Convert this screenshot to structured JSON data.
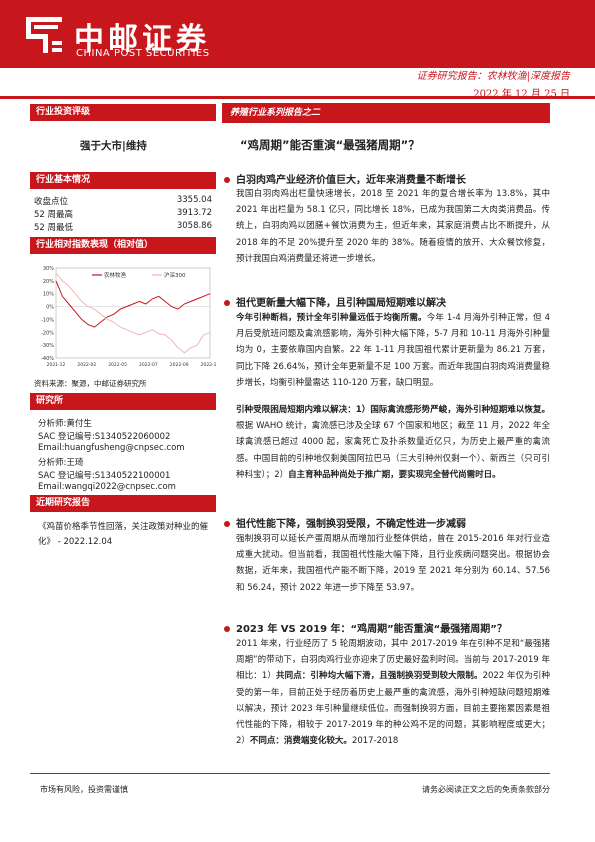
{
  "header": {
    "logo_cn": "中邮证券",
    "logo_en": "CHINA POST SECURITIES",
    "report_type": "证券研究报告：农林牧渔|深度报告",
    "date": "2022 年 12 月 25 日"
  },
  "sidebar": {
    "rating_section": "行业投资评级",
    "rating": "强于大市|维持",
    "basic_section": "行业基本情况",
    "basic_rows": [
      {
        "label": "收盘点位",
        "value": "3355.04"
      },
      {
        "label": "52 周最高",
        "value": "3913.72"
      },
      {
        "label": "52 周最低",
        "value": "3058.86"
      }
    ],
    "perf_section": "行业相对指数表现（相对值）",
    "source": "资料来源：聚源，中邮证券研究所",
    "analyst_section": "研究所",
    "analysts": [
      "分析师:黄付生",
      "SAC 登记编号:S1340522060002",
      "Email:huangfusheng@cnpsec.com",
      "分析师:王琦",
      "SAC 登记编号:S1340522100001",
      "Email:wangqi2022@cnpsec.com"
    ],
    "recent_section": "近期研究报告",
    "recent_text": "《鸡苗价格季节性回落，关注政策对种业的催化》 - 2022.12.04"
  },
  "chart_data": {
    "type": "line",
    "legend_position": "top",
    "series": [
      {
        "name": "农林牧渔",
        "color": "#c8161d",
        "values": [
          20,
          8,
          2,
          -4,
          -10,
          -14,
          -16,
          -12,
          -8,
          -6,
          -2,
          0,
          2,
          4,
          2,
          6,
          8,
          4,
          0,
          -2,
          2,
          4,
          6,
          8,
          10
        ]
      },
      {
        "name": "沪深300",
        "color": "#f4b6b6",
        "values": [
          26,
          20,
          16,
          10,
          4,
          0,
          -2,
          -6,
          -10,
          -12,
          -16,
          -18,
          -20,
          -22,
          -20,
          -18,
          -21,
          -22,
          -26,
          -32,
          -36,
          -32,
          -30,
          -22,
          -20
        ]
      }
    ],
    "xticks": [
      "2021-12",
      "2022-02",
      "2022-05",
      "2022-07",
      "2022-09",
      "2022-12"
    ],
    "yticks": [
      "30%",
      "20%",
      "10%",
      "0%",
      "-10%",
      "-20%",
      "-30%",
      "-40%"
    ],
    "ylim": [
      -40,
      30
    ]
  },
  "main": {
    "series_tag": "养殖行业系列报告之二",
    "title": "“鸡周期”能否重演“最强猪周期”？",
    "sections": [
      {
        "heading": "白羽肉鸡产业经济价值巨大，近年来消费量不断增长",
        "paragraphs": [
          "我国白羽肉鸡出栏量快速增长，2018 至 2021 年的复合增长率为 13.8%，其中 2021 年出栏量为 58.1 亿只，同比增长 18%，已成为我国第二大肉类消费品。传统上，白羽肉鸡以团膳+餐饮消费为主，但近年来，其家庭消费占比不断提升，从 2018 年的不足 20%提升至 2020 年的 38%。随着疫情的放开、大众餐饮修复，预计我国白鸡消费量还将进一步增长。"
        ]
      },
      {
        "heading": "祖代更新量大幅下降，且引种国局短期难以解决",
        "paragraphs": [
          "<b>今年引种断档，预计全年引种量远低于均衡所需。</b>今年 1-4 月海外引种正常，但 4 月后受航班问题及禽流感影响，海外引种大幅下降，5-7 月和 10-11 月海外引种量均为 0，主要依靠国内自繁。22 年 1-11 月我国祖代累计更新量为 86.21 万套，同比下降 26.64%，预计全年更新量不足 100 万套。而近年我国白羽肉鸡消费量稳步增长，均衡引种量需达 110-120 万套，缺口明显。",
          "<b>引种受限困局短期内难以解决：1）国际禽流感形势严峻，海外引种短期难以恢复。</b>根据 WAHO 统计，禽流感已涉及全球 67 个国家和地区；截至 11 月，2022 年全球禽流感已超过 4000 起，家禽死亡及扑杀数量近亿只，为历史上最严重的禽流感。中国目前的引种地仅剩美国阿拉巴马（三大引种州仅剩一个）、新西兰（只可引种科宝）；2）<b>自主育种品种尚处于推广期，要实现完全替代尚需时日。</b>"
        ]
      },
      {
        "heading": "祖代性能下降，强制换羽受限，不确定性进一步减弱",
        "paragraphs": [
          "强制换羽可以延长产蛋周期从而增加行业整体供给，曾在 2015-2016 年对行业造成重大扰动。但当前看，我国祖代性能大幅下降，且行业疾病问题突出。根据协会数据，近年来，我国祖代产能不断下降，2019 至 2021 年分别为 60.14、57.56 和 56.24，预计 2022 年进一步下降至 53.97。"
        ]
      },
      {
        "heading": "2023 年 VS 2019 年：“鸡周期”能否重演“最强猪周期”？",
        "paragraphs": [
          "2011 年来，行业经历了 5 轮周期波动，其中 2017-2019 年在引种不足和“最强猪周期”的带动下，白羽肉鸡行业亦迎来了历史最好盈利时间。当前与 2017-2019 年相比：1）<b>共同点：引种均大幅下滑，且强制换羽受到较大限制。</b>2022 年仅为引种受的第一年，目前正处于经历着历史上最严重的禽流感，海外引种短缺问题短期难以解决，预计 2023 年引种量继续低位。而强制换羽方面，目前主要拖累因素是祖代性能的下降，相较于 2017-2019 年的种公鸡不足的问题，其影响程度或更大；2）<b>不同点：消费端变化较大。</b>2017-2018"
        ]
      }
    ]
  },
  "footer": {
    "left": "市场有风险，投资需谨慎",
    "right": "请务必阅读正文之后的免责条款部分"
  }
}
